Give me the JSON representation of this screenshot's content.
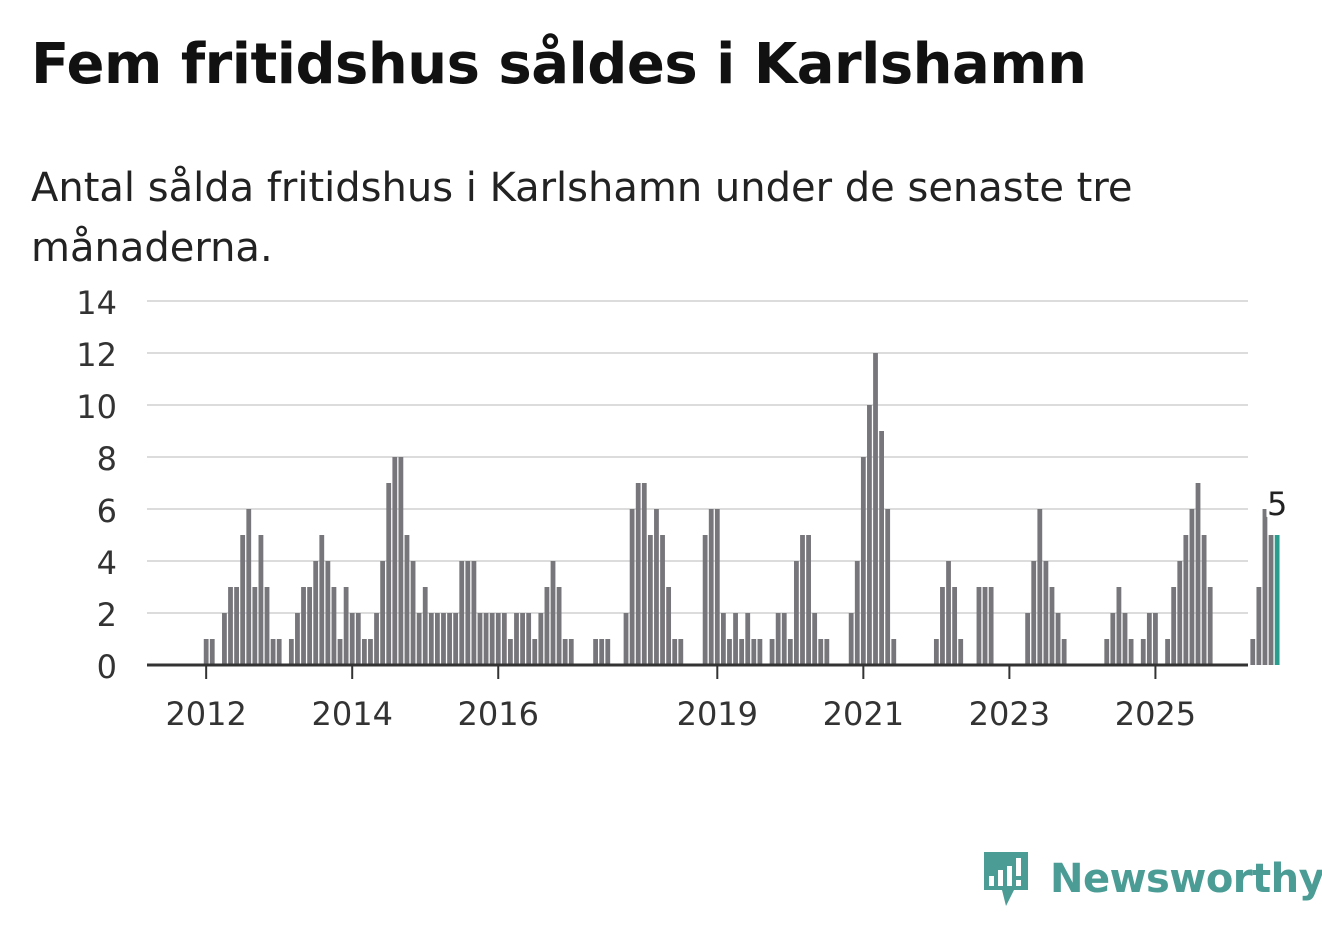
{
  "title": "Fem fritidshus såldes i Karlshamn",
  "subtitle": "Antal sålda fritidshus i Karlshamn under de senaste tre månaderna.",
  "brand": {
    "name": "Newsworthy",
    "color": "#4a9c95",
    "icon": "newsworthy-logo-icon"
  },
  "chart_data": {
    "type": "bar",
    "title": "",
    "xlabel": "",
    "ylabel": "",
    "ylim": [
      0,
      14
    ],
    "y_ticks": [
      0,
      2,
      4,
      6,
      8,
      10,
      12,
      14
    ],
    "x_tick_labels": [
      "2012",
      "2014",
      "2016",
      "2019",
      "2021",
      "2023",
      "2025"
    ],
    "x_tick_indices": [
      9,
      33,
      57,
      93,
      117,
      141,
      165
    ],
    "grid": true,
    "bar_color": "#77767b",
    "highlight_color": "#2a9d8f",
    "highlight_label": "5",
    "values": [
      0,
      0,
      0,
      0,
      0,
      0,
      0,
      0,
      0,
      1,
      1,
      0,
      2,
      3,
      3,
      5,
      6,
      3,
      5,
      3,
      1,
      1,
      0,
      1,
      2,
      3,
      3,
      4,
      5,
      4,
      3,
      1,
      3,
      2,
      2,
      1,
      1,
      2,
      4,
      7,
      8,
      8,
      5,
      4,
      2,
      3,
      2,
      2,
      2,
      2,
      2,
      4,
      4,
      4,
      2,
      2,
      2,
      2,
      2,
      1,
      2,
      2,
      2,
      1,
      2,
      3,
      4,
      3,
      1,
      1,
      0,
      0,
      0,
      1,
      1,
      1,
      0,
      0,
      2,
      6,
      7,
      7,
      5,
      6,
      5,
      3,
      1,
      1,
      0,
      0,
      0,
      5,
      6,
      6,
      2,
      1,
      2,
      1,
      2,
      1,
      1,
      0,
      1,
      2,
      2,
      1,
      4,
      5,
      5,
      2,
      1,
      1,
      0,
      0,
      0,
      2,
      4,
      8,
      10,
      12,
      9,
      6,
      1,
      0,
      0,
      0,
      0,
      0,
      0,
      1,
      3,
      4,
      3,
      1,
      0,
      0,
      3,
      3,
      3,
      0,
      0,
      0,
      0,
      0,
      2,
      4,
      6,
      4,
      3,
      2,
      1,
      0,
      0,
      0,
      0,
      0,
      0,
      1,
      2,
      3,
      2,
      1,
      0,
      1,
      2,
      2,
      0,
      1,
      3,
      4,
      5,
      6,
      7,
      5,
      3,
      0,
      0,
      0,
      0,
      0,
      0,
      1,
      3,
      6,
      5,
      5
    ]
  }
}
